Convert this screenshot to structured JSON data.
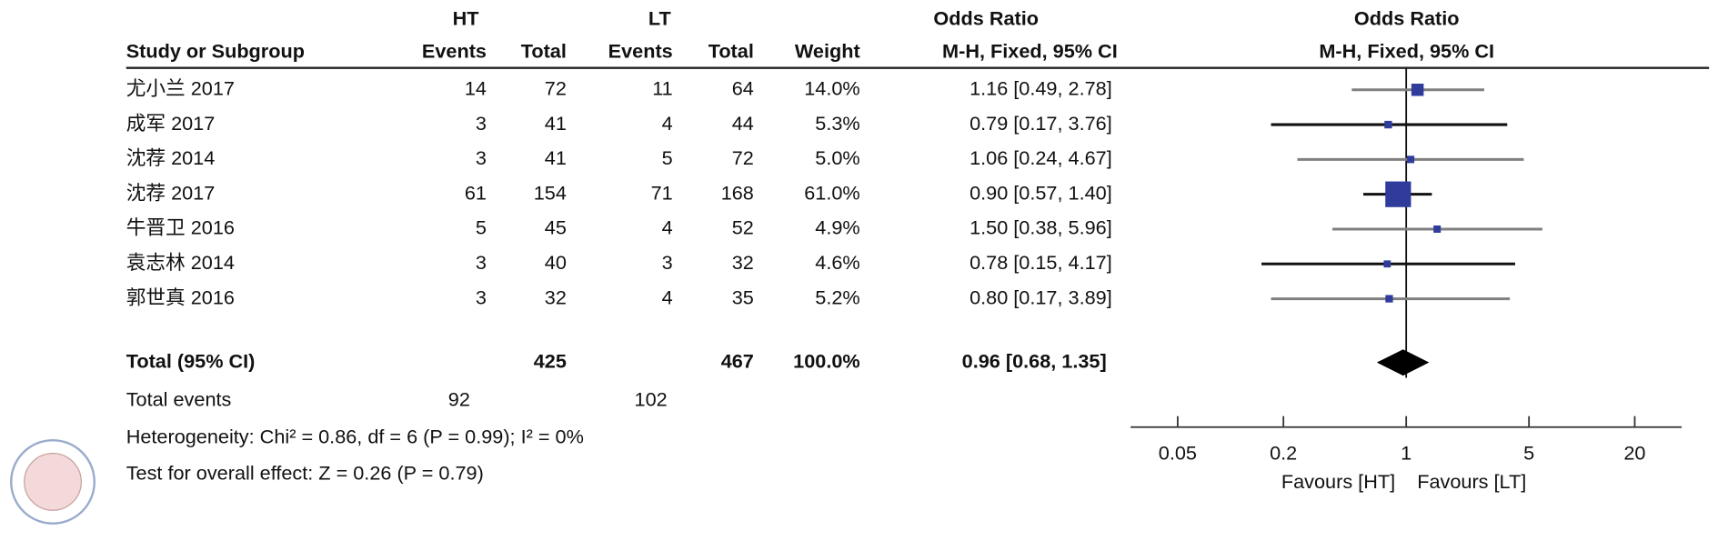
{
  "chart_data": {
    "type": "forest",
    "group_headers": [
      "HT",
      "LT"
    ],
    "column_headers": [
      "Study or Subgroup",
      "Events",
      "Total",
      "Events",
      "Total",
      "Weight"
    ],
    "effect_title": "Odds Ratio",
    "effect_subtitle": "M-H, Fixed, 95% CI",
    "plot_title": "Odds Ratio",
    "plot_subtitle": "M-H, Fixed, 95% CI",
    "studies": [
      "尤小兰 2017",
      "成军 2017",
      "沈荐 2014",
      "沈荐 2017",
      "牛晋卫 2016",
      "袁志林 2014",
      "郭世真 2016"
    ],
    "ht_events": [
      14,
      3,
      3,
      61,
      5,
      3,
      3
    ],
    "ht_total": [
      72,
      41,
      41,
      154,
      45,
      40,
      32
    ],
    "lt_events": [
      11,
      4,
      5,
      71,
      4,
      3,
      4
    ],
    "lt_total": [
      64,
      44,
      72,
      168,
      52,
      32,
      35
    ],
    "weights": [
      14.0,
      5.3,
      5.0,
      61.0,
      4.9,
      4.6,
      5.2
    ],
    "weight_labels": [
      "14.0%",
      "5.3%",
      "5.0%",
      "61.0%",
      "4.9%",
      "4.6%",
      "5.2%"
    ],
    "odds_ratios": [
      1.16,
      0.79,
      1.06,
      0.9,
      1.5,
      0.78,
      0.8
    ],
    "ci_lower": [
      0.49,
      0.17,
      0.24,
      0.57,
      0.38,
      0.15,
      0.17
    ],
    "ci_upper": [
      2.78,
      3.76,
      4.67,
      1.4,
      5.96,
      4.17,
      3.89
    ],
    "effect_labels": [
      "1.16 [0.49, 2.78]",
      "0.79 [0.17, 3.76]",
      "1.06 [0.24, 4.67]",
      "0.90 [0.57, 1.40]",
      "1.50 [0.38, 5.96]",
      "0.78 [0.15, 4.17]",
      "0.80 [0.17, 3.89]"
    ],
    "ci_colors": [
      "#808080",
      "#111111",
      "#808080",
      "#111111",
      "#808080",
      "#111111",
      "#808080"
    ],
    "marker_color": "#2f3c9c",
    "total": {
      "label": "Total (95% CI)",
      "ht_total": 425,
      "lt_total": 467,
      "weight": 100.0,
      "weight_label": "100.0%",
      "odds_ratio": 0.96,
      "ci_lower": 0.68,
      "ci_upper": 1.35,
      "effect_label": "0.96 [0.68, 1.35]"
    },
    "total_events": {
      "label": "Total events",
      "ht": 92,
      "lt": 102
    },
    "heterogeneity": "Heterogeneity: Chi² = 0.86, df = 6 (P = 0.99); I² = 0%",
    "overall_effect": "Test for overall effect: Z = 0.26 (P = 0.79)",
    "log_x": true,
    "xlim": [
      0.027,
      37
    ],
    "xticks": [
      0.05,
      0.2,
      1,
      5,
      20
    ],
    "x_labels": [
      "Favours [HT]",
      "Favours [LT]"
    ]
  }
}
